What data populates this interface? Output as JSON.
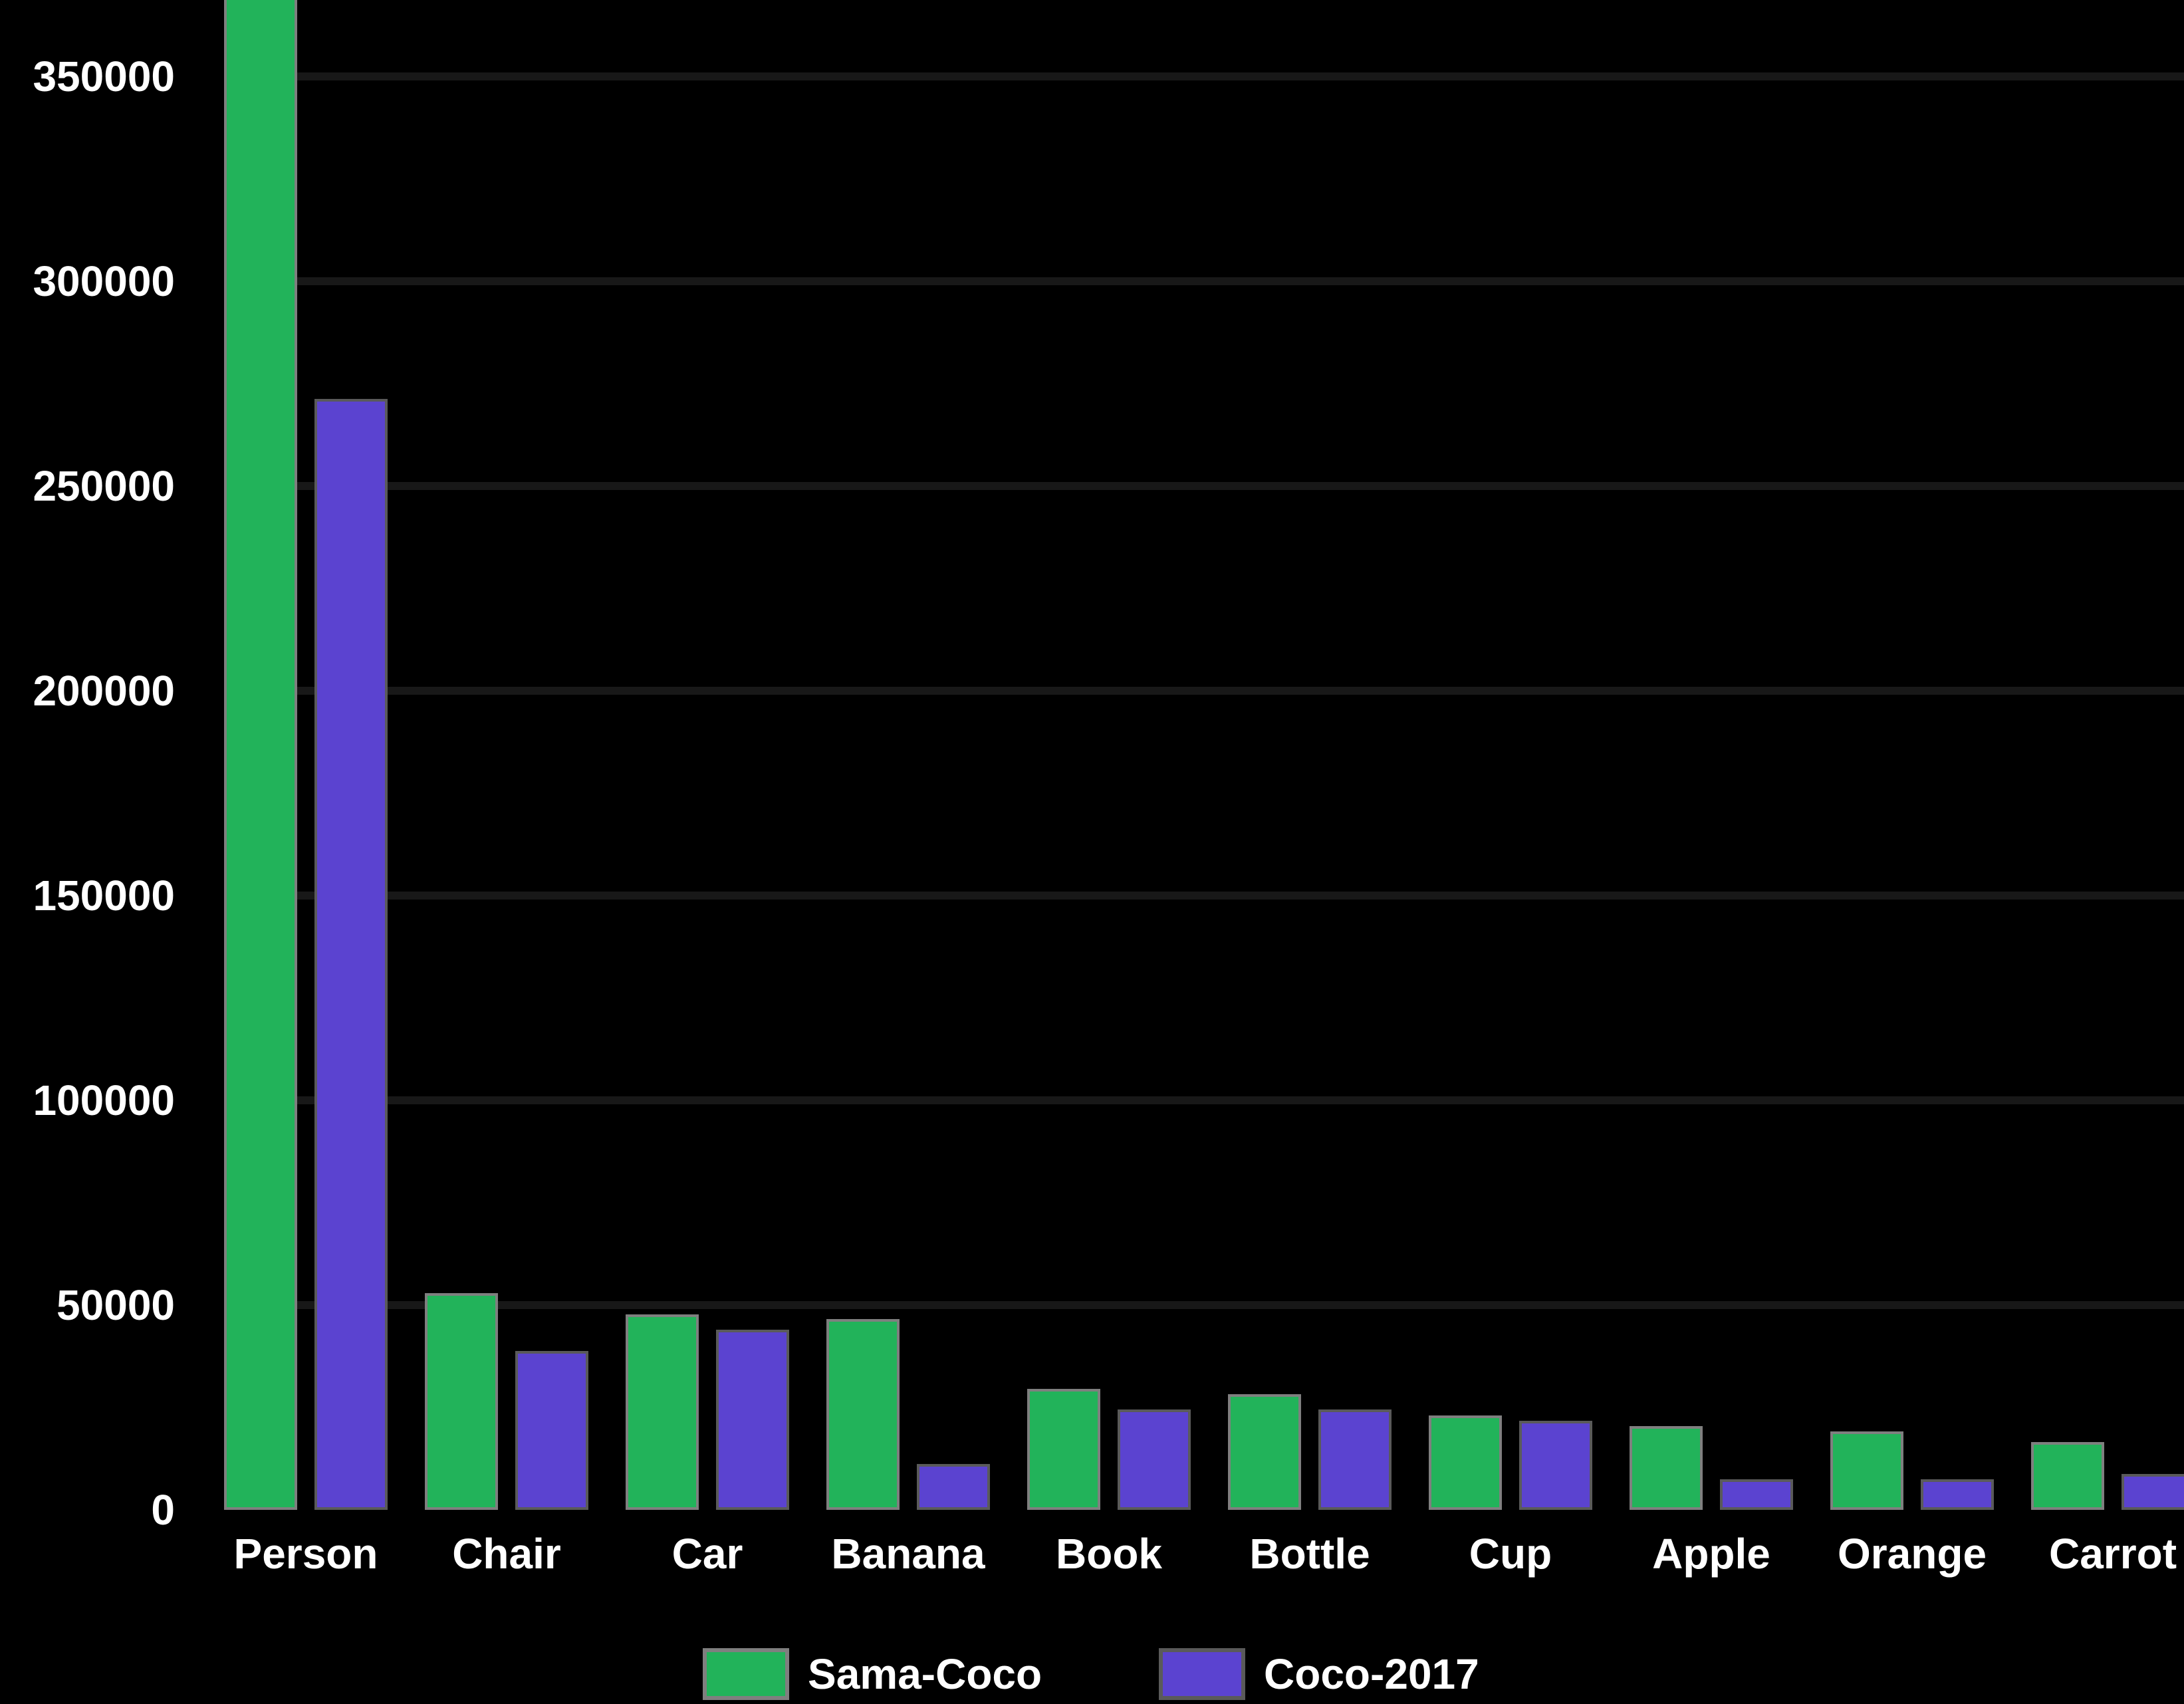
{
  "chart_data": {
    "type": "bar",
    "title": "",
    "xlabel": "",
    "ylabel": "",
    "categories": [
      "Person",
      "Chair",
      "Car",
      "Banana",
      "Book",
      "Bottle",
      "Cup",
      "Apple",
      "Orange",
      "Carrot"
    ],
    "series": [
      {
        "name": "Sama-Coco",
        "color": "#22B35A",
        "values": [
          370000,
          53000,
          47700,
          46600,
          29500,
          28300,
          23100,
          20500,
          19200,
          16600
        ]
      },
      {
        "name": "Coco-2017",
        "color": "#5B43D0",
        "values": [
          271300,
          38800,
          44000,
          11200,
          24500,
          24500,
          21800,
          7500,
          7500,
          8800
        ]
      }
    ],
    "yticks": [
      "0",
      "50000",
      "100000",
      "150000",
      "200000",
      "250000",
      "300000",
      "350000"
    ],
    "ylim": [
      0,
      368000
    ],
    "grid": true,
    "legend_position": "bottom",
    "annotations": [
      "Person (Sama-Coco) bar extends beyond the top of the visible plot area"
    ]
  },
  "legend": {
    "items": [
      {
        "label": "Sama-Coco",
        "color": "#22B35A"
      },
      {
        "label": "Coco-2017",
        "color": "#5B43D0"
      }
    ]
  }
}
